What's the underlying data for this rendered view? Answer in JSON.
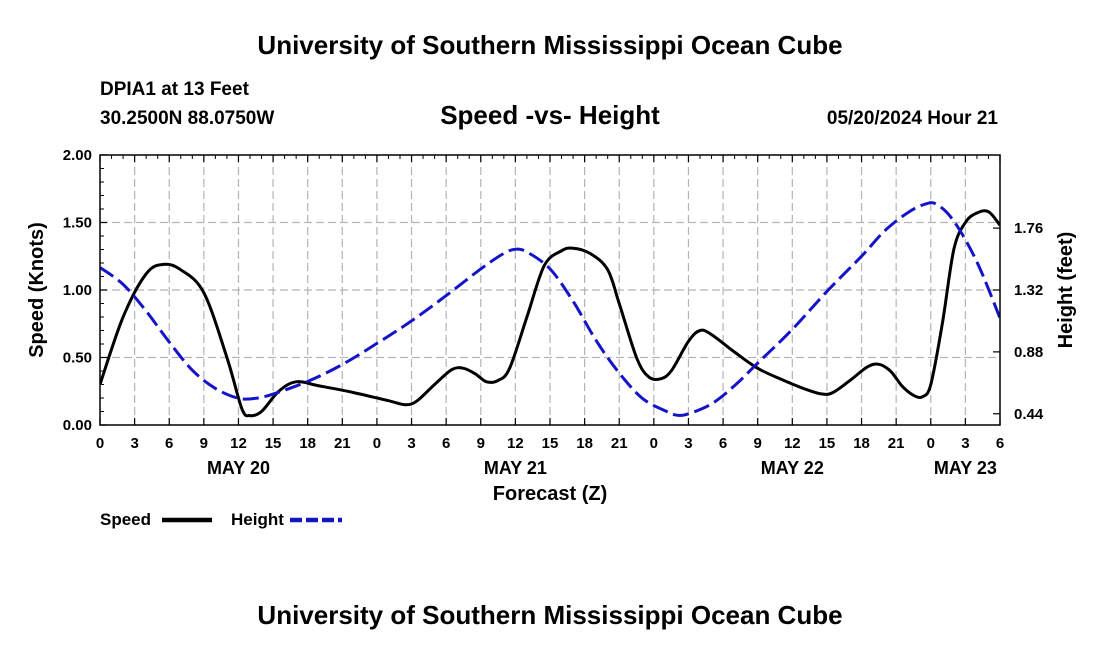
{
  "header": {
    "title": "University of Southern Mississippi Ocean Cube",
    "station": "DPIA1 at 13 Feet",
    "coords": "30.2500N  88.0750W",
    "datetime": "05/20/2024 Hour 21",
    "footer_title": "University of Southern Mississippi Ocean Cube"
  },
  "legend": {
    "speed_label": "Speed",
    "height_label": "Height"
  },
  "colors": {
    "speed": "#000000",
    "height": "#1414c8",
    "grid": "#b4b4b4"
  },
  "chart_data": {
    "type": "line",
    "title": "Speed -vs- Height",
    "xlabel": "Forecast (Z)",
    "ylabel": "Speed (Knots)",
    "y2label": "Height (feet)",
    "xlim": [
      0,
      78
    ],
    "ylim": [
      0,
      2.0
    ],
    "y2lim": [
      0.36,
      2.28
    ],
    "grid": true,
    "legend_position": "bottom-left",
    "x_ticks": [
      0,
      3,
      6,
      9,
      12,
      15,
      18,
      21,
      24,
      27,
      30,
      33,
      36,
      39,
      42,
      45,
      48,
      51,
      54,
      57,
      60,
      63,
      66,
      69,
      72,
      75,
      78
    ],
    "x_tick_labels": [
      "0",
      "3",
      "6",
      "9",
      "12",
      "15",
      "18",
      "21",
      "0",
      "3",
      "6",
      "9",
      "12",
      "15",
      "18",
      "21",
      "0",
      "3",
      "6",
      "9",
      "12",
      "15",
      "18",
      "21",
      "0",
      "3",
      "6"
    ],
    "date_labels": [
      {
        "label": "MAY 20",
        "hour": 12
      },
      {
        "label": "MAY 21",
        "hour": 36
      },
      {
        "label": "MAY 22",
        "hour": 60
      },
      {
        "label": "MAY 23",
        "hour": 75
      }
    ],
    "y_ticks": [
      0,
      0.5,
      1.0,
      1.5,
      2.0
    ],
    "y_tick_labels": [
      "0.00",
      "0.50",
      "1.00",
      "1.50",
      "2.00"
    ],
    "y2_ticks": [
      0.44,
      0.88,
      1.32,
      1.76
    ],
    "y2_tick_labels": [
      "0.44",
      "0.88",
      "1.32",
      "1.76"
    ],
    "series": [
      {
        "name": "Speed",
        "axis": "left",
        "style": "solid",
        "points": [
          [
            0,
            0.3
          ],
          [
            2,
            0.8
          ],
          [
            4,
            1.12
          ],
          [
            5.5,
            1.19
          ],
          [
            7,
            1.15
          ],
          [
            9,
            0.98
          ],
          [
            11,
            0.5
          ],
          [
            12.3,
            0.12
          ],
          [
            13,
            0.07
          ],
          [
            14,
            0.1
          ],
          [
            15.5,
            0.25
          ],
          [
            17,
            0.32
          ],
          [
            19,
            0.29
          ],
          [
            22,
            0.24
          ],
          [
            25,
            0.18
          ],
          [
            26.5,
            0.15
          ],
          [
            27.5,
            0.18
          ],
          [
            29,
            0.3
          ],
          [
            30.5,
            0.41
          ],
          [
            31.5,
            0.42
          ],
          [
            32.5,
            0.38
          ],
          [
            33.5,
            0.32
          ],
          [
            34.5,
            0.33
          ],
          [
            35.5,
            0.42
          ],
          [
            37,
            0.8
          ],
          [
            38.5,
            1.18
          ],
          [
            40,
            1.29
          ],
          [
            41,
            1.31
          ],
          [
            42.5,
            1.27
          ],
          [
            44,
            1.15
          ],
          [
            45,
            0.9
          ],
          [
            46.5,
            0.5
          ],
          [
            47.5,
            0.36
          ],
          [
            48.5,
            0.34
          ],
          [
            49.5,
            0.4
          ],
          [
            51,
            0.62
          ],
          [
            52,
            0.7
          ],
          [
            53,
            0.67
          ],
          [
            55,
            0.54
          ],
          [
            57,
            0.42
          ],
          [
            59,
            0.34
          ],
          [
            61,
            0.27
          ],
          [
            62.5,
            0.23
          ],
          [
            63.5,
            0.24
          ],
          [
            65,
            0.33
          ],
          [
            66.5,
            0.43
          ],
          [
            67.5,
            0.45
          ],
          [
            68.5,
            0.4
          ],
          [
            69.5,
            0.29
          ],
          [
            70.5,
            0.22
          ],
          [
            71.3,
            0.21
          ],
          [
            72,
            0.3
          ],
          [
            73,
            0.75
          ],
          [
            74,
            1.3
          ],
          [
            75,
            1.5
          ],
          [
            76,
            1.57
          ],
          [
            77,
            1.58
          ],
          [
            78,
            1.48
          ]
        ]
      },
      {
        "name": "Height",
        "axis": "right",
        "style": "dashed",
        "points": [
          [
            0,
            1.48
          ],
          [
            2,
            1.36
          ],
          [
            4,
            1.17
          ],
          [
            6,
            0.95
          ],
          [
            8,
            0.75
          ],
          [
            10,
            0.62
          ],
          [
            12,
            0.55
          ],
          [
            13.5,
            0.55
          ],
          [
            15,
            0.58
          ],
          [
            18,
            0.67
          ],
          [
            21,
            0.79
          ],
          [
            24,
            0.94
          ],
          [
            27,
            1.1
          ],
          [
            30,
            1.28
          ],
          [
            33,
            1.47
          ],
          [
            35,
            1.58
          ],
          [
            36,
            1.61
          ],
          [
            37,
            1.59
          ],
          [
            39,
            1.47
          ],
          [
            41,
            1.24
          ],
          [
            43,
            0.96
          ],
          [
            45,
            0.73
          ],
          [
            47,
            0.55
          ],
          [
            49,
            0.46
          ],
          [
            50,
            0.43
          ],
          [
            51,
            0.44
          ],
          [
            53,
            0.51
          ],
          [
            55,
            0.64
          ],
          [
            57,
            0.8
          ],
          [
            60,
            1.04
          ],
          [
            63,
            1.31
          ],
          [
            66,
            1.56
          ],
          [
            68,
            1.74
          ],
          [
            70,
            1.87
          ],
          [
            71.5,
            1.93
          ],
          [
            72.5,
            1.93
          ],
          [
            74,
            1.81
          ],
          [
            76,
            1.52
          ],
          [
            78,
            1.12
          ]
        ]
      }
    ]
  }
}
